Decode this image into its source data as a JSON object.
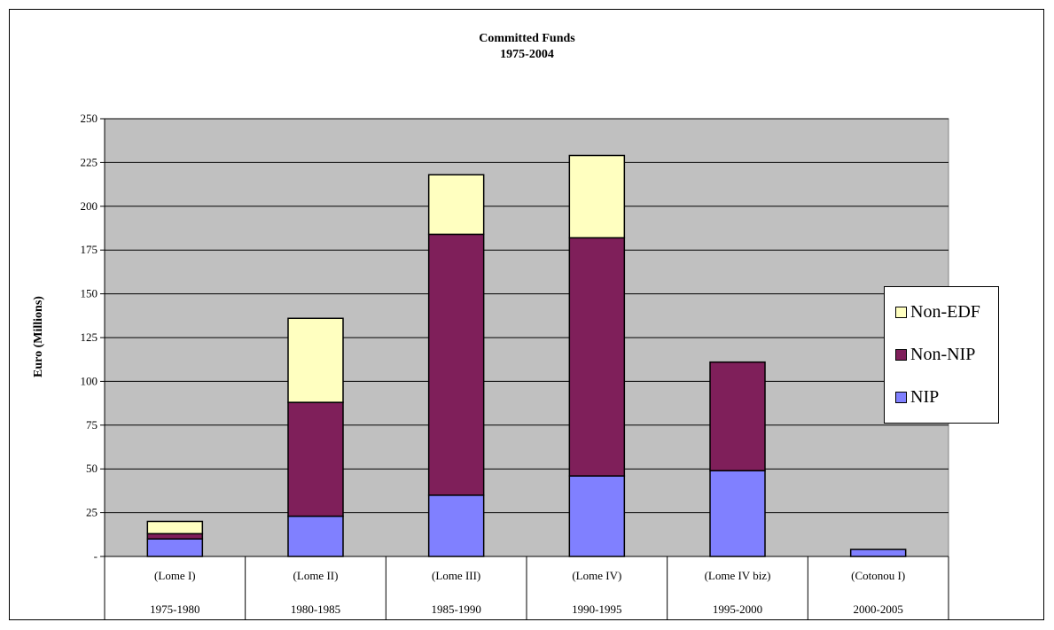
{
  "chart_data": {
    "type": "bar",
    "stacked": true,
    "title": "Committed Funds",
    "subtitle": "1975-2004",
    "xlabel": "",
    "ylabel": "Euro (Millions)",
    "ylim": [
      0,
      250
    ],
    "yticks": [
      "-",
      "25",
      "50",
      "75",
      "100",
      "125",
      "150",
      "175",
      "200",
      "225",
      "250"
    ],
    "grid": true,
    "legend_position": "right",
    "categories": [
      {
        "name": "(Lome I)",
        "period": "1975-1980"
      },
      {
        "name": "(Lome II)",
        "period": "1980-1985"
      },
      {
        "name": "(Lome III)",
        "period": "1985-1990"
      },
      {
        "name": "(Lome IV)",
        "period": "1990-1995"
      },
      {
        "name": "(Lome IV biz)",
        "period": "1995-2000"
      },
      {
        "name": "(Cotonou I)",
        "period": "2000-2005"
      }
    ],
    "series": [
      {
        "name": "NIP",
        "color": "#8080FF",
        "values": [
          10,
          23,
          35,
          46,
          49,
          4
        ]
      },
      {
        "name": "Non-NIP",
        "color": "#7F1F5A",
        "values": [
          3,
          65,
          149,
          136,
          62,
          0
        ]
      },
      {
        "name": "Non-EDF",
        "color": "#FFFFC0",
        "values": [
          7,
          48,
          34,
          47,
          0,
          0
        ]
      }
    ],
    "legend_order": [
      "Non-EDF",
      "Non-NIP",
      "NIP"
    ],
    "plot_background": "#C0C0C0"
  }
}
